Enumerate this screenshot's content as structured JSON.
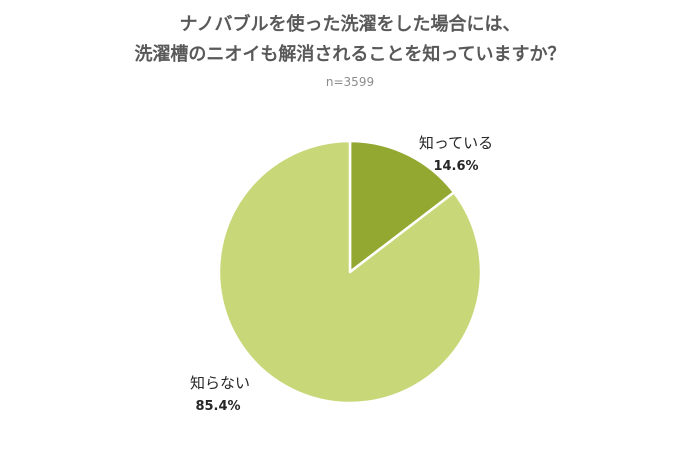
{
  "chart_data": {
    "type": "pie",
    "title_lines": [
      "ナノバブルを使った洗濯をした場合には、",
      "洗濯槽のニオイも解消されることを知っていますか？"
    ],
    "subtitle": "n=3599",
    "start_angle_deg": 0,
    "direction": "clockwise",
    "slices": [
      {
        "label": "知っている",
        "value": 14.6,
        "value_label": "14.6%",
        "color": "#93A831"
      },
      {
        "label": "知らない",
        "value": 85.4,
        "value_label": "85.4%",
        "color": "#C8D878"
      }
    ],
    "slice_border_color": "#FFFFFF"
  }
}
